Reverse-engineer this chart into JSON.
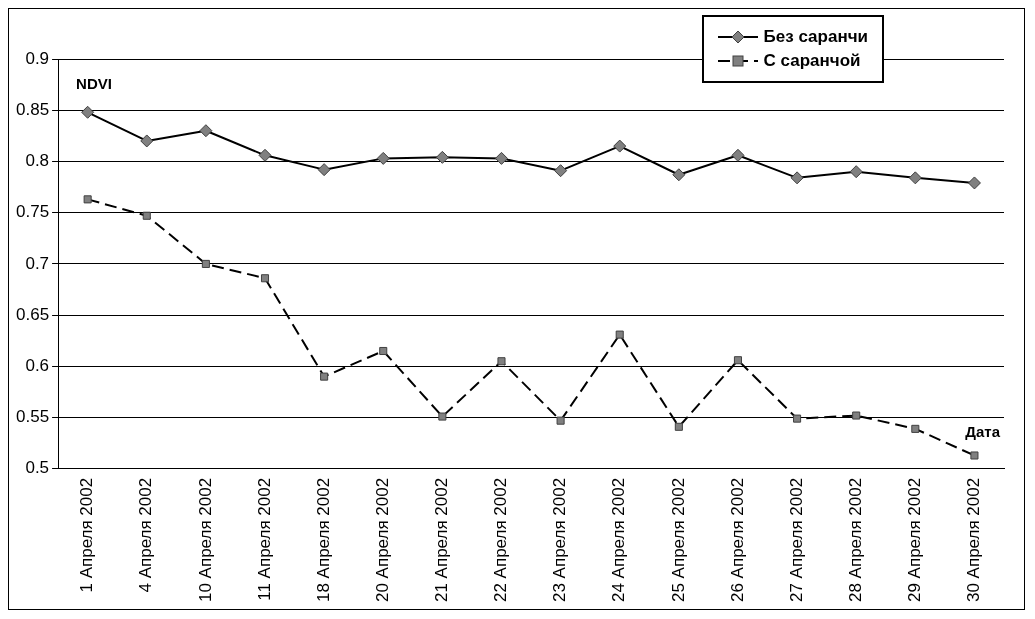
{
  "chart_data": {
    "type": "line",
    "ylabel": "NDVI",
    "xlabel": "Дата",
    "categories": [
      "1 Апреля 2002",
      "4 Апреля 2002",
      "10 Апреля 2002",
      "11 Апреля 2002",
      "18 Апреля 2002",
      "20 Апреля 2002",
      "21 Апреля 2002",
      "22 Апреля 2002",
      "23 Апреля 2002",
      "24 Апреля 2002",
      "25 Апреля 2002",
      "26 Апреля 2002",
      "27 Апреля 2002",
      "28 Апреля 2002",
      "29 Апреля 2002",
      "30 Апреля 2002"
    ],
    "series": [
      {
        "name": "Без саранчи",
        "color": "#000000",
        "marker": "diamond",
        "line_style": "solid",
        "values": [
          0.848,
          0.82,
          0.83,
          0.806,
          0.792,
          0.803,
          0.804,
          0.803,
          0.791,
          0.815,
          0.787,
          0.806,
          0.784,
          0.79,
          0.784,
          0.779
        ]
      },
      {
        "name": "С саранчой",
        "color": "#000000",
        "marker": "square",
        "line_style": "dashed",
        "values": [
          0.763,
          0.747,
          0.7,
          0.686,
          0.59,
          0.615,
          0.551,
          0.605,
          0.547,
          0.631,
          0.541,
          0.606,
          0.549,
          0.552,
          0.539,
          0.513
        ]
      }
    ],
    "ylim": [
      0.5,
      0.9
    ],
    "yticks": [
      0.5,
      0.55,
      0.6,
      0.65,
      0.7,
      0.75,
      0.8,
      0.85,
      0.9
    ],
    "grid": "y",
    "legend": "top right"
  }
}
